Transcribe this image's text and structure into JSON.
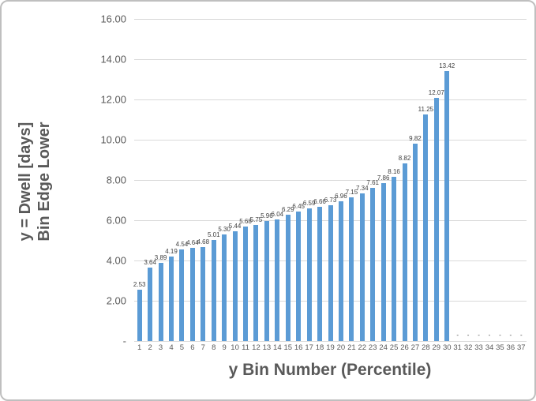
{
  "chart_data": {
    "type": "bar",
    "title": "",
    "xlabel": "y Bin Number (Percentile)",
    "ylabel_line1": "y = Dwell [days]",
    "ylabel_line2": "Bin Edge Lower",
    "ylim": [
      0,
      16
    ],
    "grid": true,
    "legend_position": "none",
    "y_ticks": [
      {
        "value": 16,
        "label": "16.00"
      },
      {
        "value": 14,
        "label": "14.00"
      },
      {
        "value": 12,
        "label": "12.00"
      },
      {
        "value": 10,
        "label": "10.00"
      },
      {
        "value": 8,
        "label": "8.00"
      },
      {
        "value": 6,
        "label": "6.00"
      },
      {
        "value": 4,
        "label": "4.00"
      },
      {
        "value": 2,
        "label": "2.00"
      },
      {
        "value": 0,
        "label": "-"
      }
    ],
    "categories": [
      "1",
      "2",
      "3",
      "4",
      "5",
      "6",
      "7",
      "8",
      "9",
      "10",
      "11",
      "12",
      "13",
      "14",
      "15",
      "16",
      "17",
      "18",
      "19",
      "20",
      "21",
      "22",
      "23",
      "24",
      "25",
      "26",
      "27",
      "28",
      "29",
      "30",
      "31",
      "32",
      "33",
      "34",
      "35",
      "36",
      "37"
    ],
    "values": [
      2.53,
      3.64,
      3.89,
      4.19,
      4.54,
      4.64,
      4.68,
      5.01,
      5.3,
      5.44,
      5.68,
      5.75,
      5.96,
      6.04,
      6.29,
      6.45,
      6.59,
      6.66,
      6.73,
      6.96,
      7.15,
      7.34,
      7.61,
      7.86,
      8.16,
      8.82,
      9.82,
      11.25,
      12.07,
      13.42,
      0,
      0,
      0,
      0,
      0,
      0,
      0
    ],
    "value_labels": [
      "2.53",
      "3.64",
      "3.89",
      "4.19",
      "4.54",
      "4.64",
      "4.68",
      "5.01",
      "5.30",
      "5.44",
      "5.68",
      "5.75",
      "5.96",
      "6.04",
      "6.29",
      "6.45",
      "6.59",
      "6.66",
      "6.73",
      "6.96",
      "7.15",
      "7.34",
      "7.61",
      "7.86",
      "8.16",
      "8.82",
      "9.82",
      "11.25",
      "12.07",
      "13.42",
      "-",
      "-",
      "-",
      "-",
      "-",
      "-",
      "-"
    ],
    "colors": {
      "bar": "#5b9bd5",
      "gridline": "#d9d9d9",
      "axis_line": "#d9d9d9",
      "tick_label": "#595959",
      "data_label": "#404040",
      "axis_title": "#595959",
      "frame_border": "#bfbfbf",
      "background": "#ffffff"
    }
  }
}
